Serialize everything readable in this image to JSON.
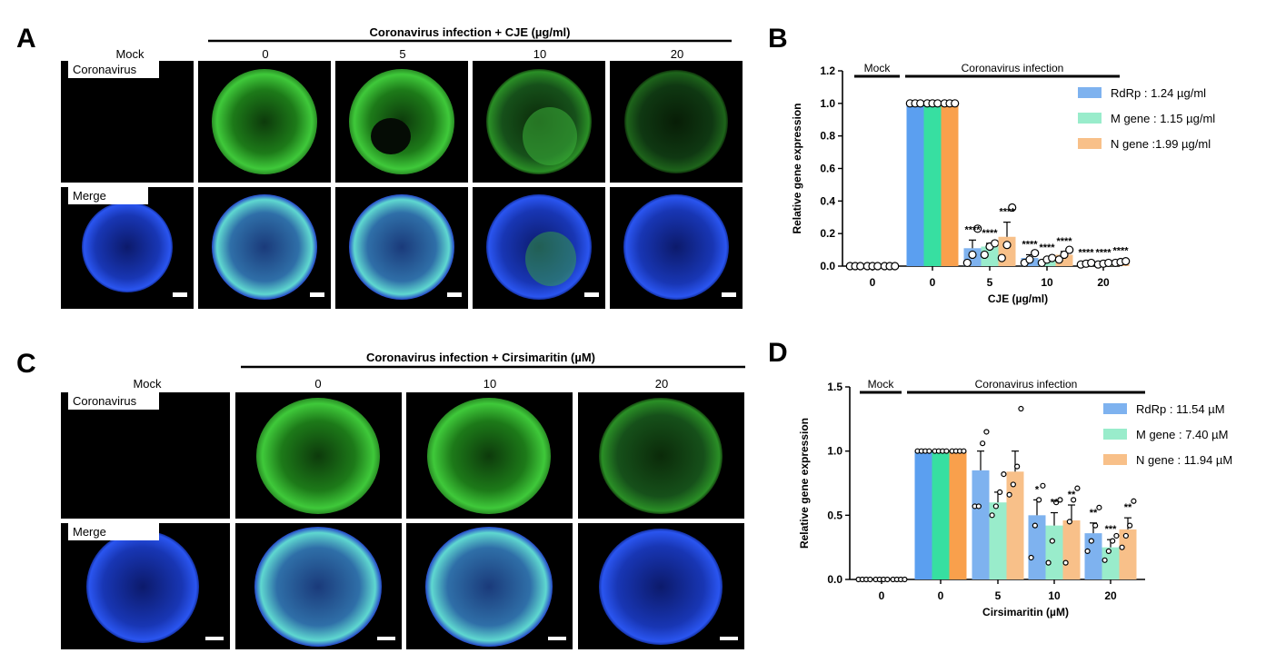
{
  "figure": {
    "panels": {
      "A": {
        "letter": "A",
        "header": "Coronavirus infection + CJE (µg/ml)",
        "mock_label": "Mock",
        "conditions": [
          "0",
          "5",
          "10",
          "20"
        ],
        "row_labels": [
          "Coronavirus",
          "Merge"
        ]
      },
      "C": {
        "letter": "C",
        "header": "Coronavirus infection + Cirsimaritin (µM)",
        "mock_label": "Mock",
        "conditions": [
          "0",
          "10",
          "20"
        ],
        "row_labels": [
          "Coronavirus",
          "Merge"
        ]
      }
    },
    "colors": {
      "rdrp": "#7eb2ef",
      "m_gene": "#99eccb",
      "n_gene": "#f8c089",
      "rdrp_zero": "#5b9ff0",
      "m_gene_zero": "#37dfa1",
      "n_gene_zero": "#f9a04c",
      "gfp": "#3fc93a",
      "dapi": "#2244d8"
    }
  },
  "chart_data": [
    {
      "panel": "B",
      "type": "bar",
      "group_labels": [
        "Mock",
        "Coronavirus infection"
      ],
      "categories": [
        "0",
        "0",
        "5",
        "10",
        "20"
      ],
      "xlabel": "CJE (µg/ml)",
      "ylabel": "Relative gene expression",
      "ylim": [
        0,
        1.2
      ],
      "yticks": [
        "0.0",
        "0.2",
        "0.4",
        "0.6",
        "0.8",
        "1.0",
        "1.2"
      ],
      "legend_position": "top-right",
      "series": [
        {
          "name": "RdRp : 1.24 µg/ml",
          "values": [
            0.005,
            1.0,
            0.11,
            0.05,
            0.015
          ],
          "errors": [
            0,
            0,
            0.05,
            0.02,
            0.005
          ],
          "points": [
            [
              0,
              0,
              0
            ],
            [
              1,
              1,
              1
            ],
            [
              0.02,
              0.07,
              0.23
            ],
            [
              0.02,
              0.04,
              0.08
            ],
            [
              0.01,
              0.015,
              0.02
            ]
          ],
          "sig": [
            "",
            "",
            "****",
            "****",
            "****"
          ]
        },
        {
          "name": "M gene : 1.15 µg/ml",
          "values": [
            0.005,
            1.0,
            0.12,
            0.04,
            0.015
          ],
          "errors": [
            0,
            0,
            0.02,
            0.01,
            0.005
          ],
          "points": [
            [
              0,
              0,
              0
            ],
            [
              1,
              1,
              1
            ],
            [
              0.07,
              0.12,
              0.14
            ],
            [
              0.02,
              0.04,
              0.05
            ],
            [
              0.01,
              0.015,
              0.02
            ]
          ],
          "sig": [
            "",
            "",
            "****",
            "****",
            "****"
          ]
        },
        {
          "name": "N gene :1.99 µg/ml",
          "values": [
            0.005,
            1.0,
            0.18,
            0.07,
            0.025
          ],
          "errors": [
            0,
            0,
            0.09,
            0.02,
            0.005
          ],
          "points": [
            [
              0,
              0,
              0
            ],
            [
              1,
              1,
              1
            ],
            [
              0.05,
              0.13,
              0.36
            ],
            [
              0.04,
              0.07,
              0.1
            ],
            [
              0.02,
              0.025,
              0.03
            ]
          ],
          "sig": [
            "",
            "",
            "****",
            "****",
            "****"
          ]
        }
      ]
    },
    {
      "panel": "D",
      "type": "bar",
      "group_labels": [
        "Mock",
        "Coronavirus infection"
      ],
      "categories": [
        "0",
        "0",
        "5",
        "10",
        "20"
      ],
      "xlabel": "Cirsimaritin (µM)",
      "ylabel": "Relative gene expression",
      "ylim": [
        0,
        1.5
      ],
      "yticks": [
        "0.0",
        "0.5",
        "1.0",
        "1.5"
      ],
      "legend_position": "top-right",
      "series": [
        {
          "name": "RdRp : 11.54 µM",
          "values": [
            0.005,
            1.0,
            0.85,
            0.5,
            0.36
          ],
          "errors": [
            0,
            0,
            0.15,
            0.12,
            0.08
          ],
          "points": [
            [
              0,
              0,
              0,
              0
            ],
            [
              1,
              1,
              1,
              1
            ],
            [
              0.57,
              0.57,
              1.06,
              1.15
            ],
            [
              0.17,
              0.42,
              0.62,
              0.73
            ],
            [
              0.22,
              0.3,
              0.42,
              0.56
            ]
          ],
          "sig": [
            "",
            "",
            "",
            "*",
            "**"
          ]
        },
        {
          "name": "M gene : 7.40 µM",
          "values": [
            0.005,
            1.0,
            0.6,
            0.42,
            0.25
          ],
          "errors": [
            0,
            0,
            0.08,
            0.1,
            0.06
          ],
          "points": [
            [
              0,
              0,
              0,
              0
            ],
            [
              1,
              1,
              1,
              1
            ],
            [
              0.5,
              0.57,
              0.68,
              0.82
            ],
            [
              0.13,
              0.3,
              0.6,
              0.62
            ],
            [
              0.15,
              0.22,
              0.3,
              0.34
            ]
          ],
          "sig": [
            "",
            "",
            "",
            "**",
            "***"
          ]
        },
        {
          "name": "N gene : 11.94 µM",
          "values": [
            0.005,
            1.0,
            0.84,
            0.46,
            0.39
          ],
          "errors": [
            0,
            0,
            0.16,
            0.12,
            0.09
          ],
          "points": [
            [
              0,
              0,
              0,
              0
            ],
            [
              1,
              1,
              1,
              1
            ],
            [
              0.66,
              0.74,
              0.88,
              1.33
            ],
            [
              0.13,
              0.45,
              0.62,
              0.71
            ],
            [
              0.25,
              0.34,
              0.42,
              0.61
            ]
          ],
          "sig": [
            "",
            "",
            "",
            "**",
            "**"
          ]
        }
      ]
    }
  ],
  "panel_letters": {
    "B": "B",
    "D": "D"
  }
}
